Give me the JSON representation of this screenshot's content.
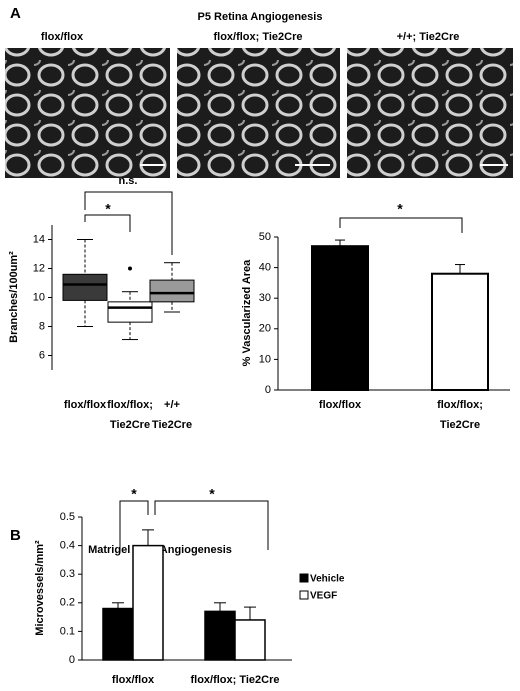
{
  "panels": {
    "a_label": "A",
    "b_label": "B"
  },
  "images": {
    "title": "P5 Retina Angiogenesis",
    "labels": [
      "flox/flox",
      "flox/flox; Tie2Cre",
      "+/+; Tie2Cre"
    ]
  },
  "chart_data": [
    {
      "type": "box",
      "y_label": "Branches/100um²",
      "categories": [
        "flox/flox",
        "flox/flox; Tie2Cre",
        "+/+ Tie2Cre"
      ],
      "boxes": [
        {
          "min": 8.0,
          "q1": 9.8,
          "median": 10.9,
          "q3": 11.6,
          "max": 14.0,
          "outliers": []
        },
        {
          "min": 7.1,
          "q1": 8.3,
          "median": 9.3,
          "q3": 9.7,
          "max": 10.4,
          "outliers": [
            12.0
          ]
        },
        {
          "min": 9.0,
          "q1": 9.7,
          "median": 10.3,
          "q3": 11.2,
          "max": 12.4,
          "outliers": []
        }
      ],
      "colors": [
        "#3a3a3a",
        "#ffffff",
        "#9a9a9a"
      ],
      "ylim": [
        5,
        15
      ],
      "yticks": [
        6,
        8,
        10,
        12,
        14
      ],
      "annotations": [
        "*",
        "n.s."
      ]
    },
    {
      "type": "bar",
      "y_label": "% Vascularized Area",
      "categories": [
        "flox/flox",
        "flox/flox; Tie2Cre"
      ],
      "values": [
        47,
        38
      ],
      "errors": [
        2,
        3
      ],
      "colors": [
        "#000000",
        "#ffffff"
      ],
      "ylim": [
        0,
        50
      ],
      "yticks": [
        0,
        10,
        20,
        30,
        40,
        50
      ],
      "annotations": [
        "*"
      ]
    },
    {
      "type": "grouped_bar",
      "title": "Matrigel Plug Angiogenesis",
      "y_label": "Microvessels/mm²",
      "categories": [
        "flox/flox",
        "flox/flox; Tie2Cre"
      ],
      "series": [
        {
          "name": "Vehicle",
          "color": "#000000",
          "values": [
            0.18,
            0.17
          ],
          "errors": [
            0.02,
            0.03
          ]
        },
        {
          "name": "VEGF",
          "color": "#ffffff",
          "values": [
            0.4,
            0.14
          ],
          "errors": [
            0.055,
            0.045
          ]
        }
      ],
      "ylim": [
        0,
        0.5
      ],
      "yticks": [
        0,
        0.1,
        0.2,
        0.3,
        0.4,
        0.5
      ],
      "annotations": [
        "*",
        "*"
      ]
    }
  ]
}
